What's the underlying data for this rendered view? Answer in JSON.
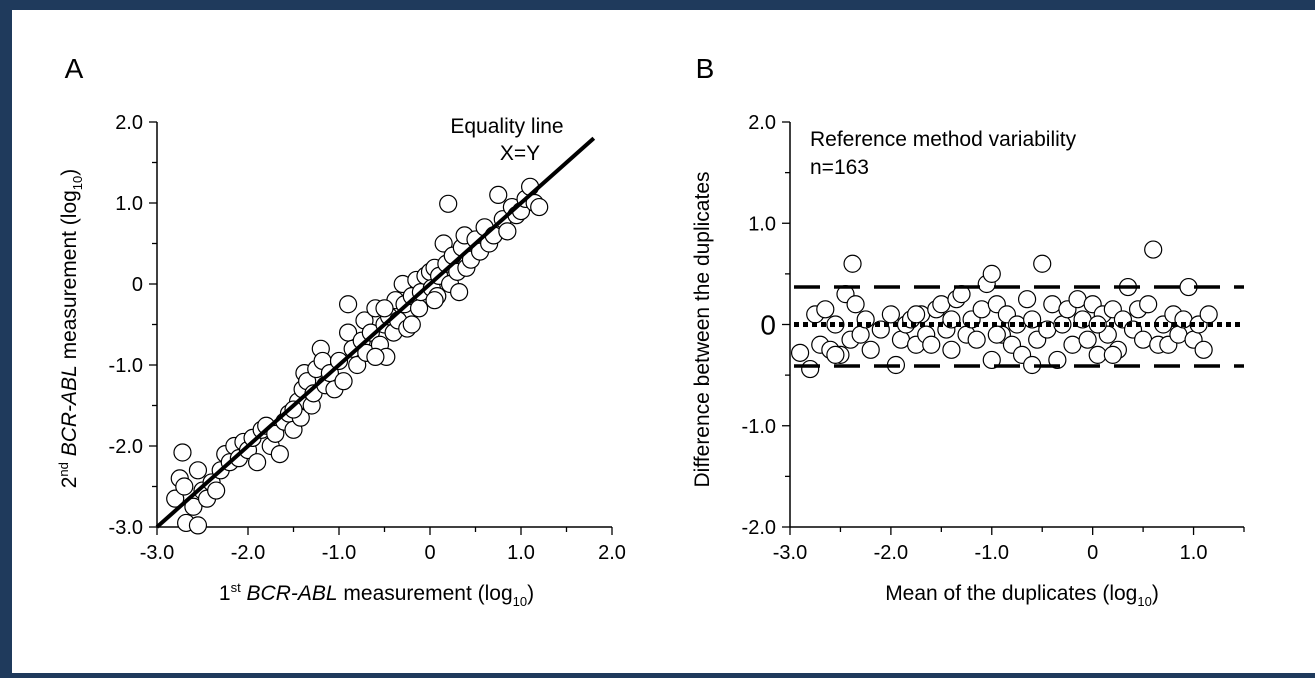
{
  "colors": {
    "frame": "#1f3a5c",
    "background": "#ffffff",
    "ink": "#000000",
    "marker_fill": "#ffffff"
  },
  "chart_data": [
    {
      "panel_label": "A",
      "type": "scatter",
      "xlim": [
        -3.0,
        2.0
      ],
      "ylim": [
        -3.0,
        2.0
      ],
      "xticks": [
        "-3.0",
        "-2.0",
        "-1.0",
        "0",
        "1.0",
        "2.0"
      ],
      "yticks": [
        "-3.0",
        "-2.0",
        "-1.0",
        "0",
        "1.0",
        "2.0"
      ],
      "xlabel": {
        "pre": "1",
        "sup": "st",
        "italic": "BCR-ABL",
        "mid": " measurement (log",
        "sub": "10",
        "post": ")"
      },
      "ylabel": {
        "pre": "2",
        "sup": "nd",
        "italic": "BCR-ABL",
        "mid": " measurement (log",
        "sub": "10",
        "post": ")"
      },
      "annotations": [
        "Equality line",
        "X=Y"
      ],
      "line": {
        "name": "Equality line",
        "x": [
          -3.0,
          1.8
        ],
        "y": [
          -3.0,
          1.8
        ]
      },
      "points": [
        [
          -2.72,
          -2.08
        ],
        [
          -2.75,
          -2.4
        ],
        [
          -2.8,
          -2.65
        ],
        [
          -2.68,
          -2.95
        ],
        [
          -2.6,
          -2.75
        ],
        [
          -2.7,
          -2.5
        ],
        [
          -2.55,
          -2.98
        ],
        [
          -2.5,
          -2.55
        ],
        [
          -2.55,
          -2.3
        ],
        [
          -2.45,
          -2.65
        ],
        [
          -2.4,
          -2.45
        ],
        [
          -2.3,
          -2.3
        ],
        [
          -2.25,
          -2.1
        ],
        [
          -2.2,
          -2.2
        ],
        [
          -2.15,
          -2.0
        ],
        [
          -2.1,
          -2.15
        ],
        [
          -2.05,
          -1.95
        ],
        [
          -2.0,
          -2.05
        ],
        [
          -1.95,
          -1.9
        ],
        [
          -1.9,
          -2.2
        ],
        [
          -1.85,
          -1.8
        ],
        [
          -1.8,
          -1.75
        ],
        [
          -1.75,
          -2.0
        ],
        [
          -1.7,
          -1.85
        ],
        [
          -1.65,
          -2.1
        ],
        [
          -1.6,
          -1.7
        ],
        [
          -1.55,
          -1.6
        ],
        [
          -1.5,
          -1.8
        ],
        [
          -1.45,
          -1.45
        ],
        [
          -1.42,
          -1.65
        ],
        [
          -1.4,
          -1.3
        ],
        [
          -1.38,
          -1.1
        ],
        [
          -1.35,
          -1.2
        ],
        [
          -1.3,
          -1.5
        ],
        [
          -1.28,
          -1.35
        ],
        [
          -1.25,
          -1.05
        ],
        [
          -1.2,
          -0.8
        ],
        [
          -1.18,
          -0.95
        ],
        [
          -1.15,
          -1.25
        ],
        [
          -1.1,
          -1.1
        ],
        [
          -1.05,
          -1.3
        ],
        [
          -1.0,
          -0.95
        ],
        [
          -0.95,
          -1.2
        ],
        [
          -0.9,
          -0.6
        ],
        [
          -0.9,
          -0.25
        ],
        [
          -0.85,
          -0.8
        ],
        [
          -0.8,
          -1.0
        ],
        [
          -0.75,
          -0.7
        ],
        [
          -0.72,
          -0.45
        ],
        [
          -0.7,
          -0.85
        ],
        [
          -0.65,
          -0.6
        ],
        [
          -0.6,
          -0.3
        ],
        [
          -0.55,
          -0.75
        ],
        [
          -0.5,
          -0.5
        ],
        [
          -0.48,
          -0.9
        ],
        [
          -0.45,
          -0.4
        ],
        [
          -0.4,
          -0.6
        ],
        [
          -0.38,
          -0.2
        ],
        [
          -0.35,
          -0.45
        ],
        [
          -0.3,
          0.0
        ],
        [
          -0.28,
          -0.25
        ],
        [
          -0.25,
          -0.55
        ],
        [
          -0.2,
          -0.15
        ],
        [
          -0.15,
          0.05
        ],
        [
          -0.12,
          -0.3
        ],
        [
          -0.1,
          -0.1
        ],
        [
          -0.05,
          0.1
        ],
        [
          0.0,
          0.15
        ],
        [
          0.02,
          -0.05
        ],
        [
          0.05,
          0.2
        ],
        [
          0.08,
          -0.15
        ],
        [
          0.1,
          0.1
        ],
        [
          0.15,
          0.5
        ],
        [
          0.18,
          0.25
        ],
        [
          0.2,
          0.99
        ],
        [
          0.22,
          0.0
        ],
        [
          0.25,
          0.35
        ],
        [
          0.3,
          0.15
        ],
        [
          0.32,
          -0.1
        ],
        [
          0.35,
          0.45
        ],
        [
          0.38,
          0.6
        ],
        [
          0.4,
          0.2
        ],
        [
          0.45,
          0.3
        ],
        [
          0.5,
          0.55
        ],
        [
          0.55,
          0.4
        ],
        [
          0.6,
          0.7
        ],
        [
          0.65,
          0.5
        ],
        [
          0.7,
          0.6
        ],
        [
          0.75,
          1.1
        ],
        [
          0.8,
          0.8
        ],
        [
          0.85,
          0.65
        ],
        [
          0.9,
          0.95
        ],
        [
          0.95,
          0.85
        ],
        [
          1.0,
          0.9
        ],
        [
          1.05,
          1.05
        ],
        [
          1.1,
          1.2
        ],
        [
          1.15,
          1.0
        ],
        [
          1.2,
          0.95
        ],
        [
          -0.6,
          -0.9
        ],
        [
          -0.5,
          -0.3
        ],
        [
          -0.2,
          -0.5
        ],
        [
          0.05,
          -0.2
        ],
        [
          -1.5,
          -1.55
        ],
        [
          -2.35,
          -2.55
        ]
      ]
    },
    {
      "panel_label": "B",
      "type": "scatter",
      "title_lines": [
        "Reference method variability",
        "n=163"
      ],
      "xlim": [
        -3.0,
        1.5
      ],
      "ylim": [
        -2.0,
        2.0
      ],
      "xticks": [
        "-3.0",
        "-2.0",
        "-1.0",
        "0",
        "1.0"
      ],
      "yticks": [
        "-2.0",
        "-1.0",
        "0",
        "1.0",
        "2.0"
      ],
      "xlabel": {
        "pre": "Mean of the duplicates (log",
        "sub": "10",
        "post": ")"
      },
      "ylabel": "Difference between the duplicates",
      "mean_line": 0.0,
      "upper_limit": 0.37,
      "lower_limit": -0.41,
      "points": [
        [
          -2.9,
          -0.28
        ],
        [
          -2.8,
          -0.44
        ],
        [
          -2.75,
          0.1
        ],
        [
          -2.7,
          -0.2
        ],
        [
          -2.65,
          0.15
        ],
        [
          -2.6,
          -0.25
        ],
        [
          -2.55,
          0.0
        ],
        [
          -2.5,
          -0.3
        ],
        [
          -2.45,
          0.3
        ],
        [
          -2.4,
          -0.15
        ],
        [
          -2.38,
          0.6
        ],
        [
          -2.35,
          0.2
        ],
        [
          -2.3,
          -0.1
        ],
        [
          -2.25,
          0.05
        ],
        [
          -2.2,
          -0.25
        ],
        [
          -2.1,
          -0.05
        ],
        [
          -2.0,
          0.1
        ],
        [
          -1.95,
          -0.4
        ],
        [
          -1.9,
          -0.15
        ],
        [
          -1.85,
          0.0
        ],
        [
          -1.8,
          0.05
        ],
        [
          -1.75,
          -0.2
        ],
        [
          -1.7,
          0.1
        ],
        [
          -1.65,
          -0.1
        ],
        [
          -1.6,
          -0.2
        ],
        [
          -1.55,
          0.15
        ],
        [
          -1.5,
          0.2
        ],
        [
          -1.45,
          -0.05
        ],
        [
          -1.4,
          -0.25
        ],
        [
          -1.35,
          0.25
        ],
        [
          -1.3,
          0.3
        ],
        [
          -1.25,
          -0.1
        ],
        [
          -1.2,
          0.05
        ],
        [
          -1.15,
          -0.15
        ],
        [
          -1.1,
          0.15
        ],
        [
          -1.05,
          0.4
        ],
        [
          -1.0,
          0.5
        ],
        [
          -1.0,
          -0.35
        ],
        [
          -0.95,
          0.2
        ],
        [
          -0.9,
          -0.1
        ],
        [
          -0.85,
          0.1
        ],
        [
          -0.8,
          -0.2
        ],
        [
          -0.75,
          0.0
        ],
        [
          -0.7,
          -0.3
        ],
        [
          -0.65,
          0.25
        ],
        [
          -0.6,
          0.05
        ],
        [
          -0.55,
          -0.15
        ],
        [
          -0.5,
          0.6
        ],
        [
          -0.45,
          -0.05
        ],
        [
          -0.4,
          0.2
        ],
        [
          -0.35,
          -0.35
        ],
        [
          -0.3,
          0.0
        ],
        [
          -0.25,
          0.15
        ],
        [
          -0.2,
          -0.2
        ],
        [
          -0.15,
          0.25
        ],
        [
          -0.1,
          0.05
        ],
        [
          -0.05,
          -0.15
        ],
        [
          0.0,
          0.2
        ],
        [
          0.05,
          -0.3
        ],
        [
          0.1,
          0.1
        ],
        [
          0.15,
          -0.1
        ],
        [
          0.2,
          0.15
        ],
        [
          0.25,
          -0.25
        ],
        [
          0.3,
          0.05
        ],
        [
          0.35,
          0.37
        ],
        [
          0.4,
          -0.05
        ],
        [
          0.45,
          0.15
        ],
        [
          0.5,
          -0.15
        ],
        [
          0.55,
          0.2
        ],
        [
          0.6,
          0.74
        ],
        [
          0.65,
          -0.2
        ],
        [
          0.7,
          0.0
        ],
        [
          0.75,
          -0.2
        ],
        [
          0.8,
          0.1
        ],
        [
          0.85,
          -0.1
        ],
        [
          0.9,
          0.05
        ],
        [
          0.95,
          0.37
        ],
        [
          1.0,
          -0.15
        ],
        [
          1.05,
          0.0
        ],
        [
          1.1,
          -0.25
        ],
        [
          1.15,
          0.1
        ],
        [
          -2.55,
          -0.3
        ],
        [
          -1.75,
          0.1
        ],
        [
          -0.95,
          -0.1
        ],
        [
          0.05,
          0.0
        ],
        [
          -0.6,
          -0.4
        ],
        [
          -1.4,
          0.05
        ],
        [
          0.2,
          -0.3
        ]
      ]
    }
  ]
}
